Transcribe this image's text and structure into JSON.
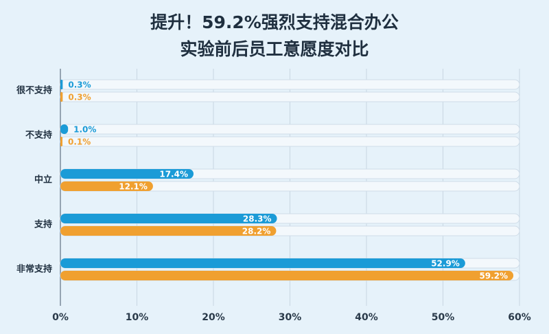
{
  "chart_data": {
    "type": "bar",
    "orientation": "horizontal",
    "title": "提升！59.2%强烈支持混合办公",
    "subtitle": "实验前后员工意愿度对比",
    "categories": [
      "很不支持",
      "不支持",
      "中立",
      "支持",
      "非常支持"
    ],
    "series": [
      {
        "color": "#1b9bd7",
        "values": [
          0.3,
          1.0,
          17.4,
          28.3,
          52.9
        ],
        "value_labels": [
          "0.3%",
          "1.0%",
          "17.4%",
          "28.3%",
          "52.9%"
        ]
      },
      {
        "color": "#f0a030",
        "values": [
          0.3,
          0.1,
          12.1,
          28.2,
          59.2
        ],
        "value_labels": [
          "0.3%",
          "0.1%",
          "12.1%",
          "28.2%",
          "59.2%"
        ]
      }
    ],
    "xlim": [
      0,
      60
    ],
    "xticks": [
      {
        "value": 0,
        "label": "0%"
      },
      {
        "value": 10,
        "label": "10%"
      },
      {
        "value": 20,
        "label": "20%"
      },
      {
        "value": 30,
        "label": "30%"
      },
      {
        "value": 40,
        "label": "40%"
      },
      {
        "value": 50,
        "label": "50%"
      },
      {
        "value": 60,
        "label": "60%"
      }
    ],
    "grid": true
  }
}
